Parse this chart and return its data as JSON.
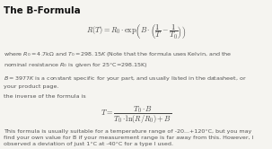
{
  "title": "The B-Formula",
  "bg_color": "#f5f4f0",
  "title_color": "#111111",
  "text_color": "#555555",
  "formula_color": "#444444",
  "title_fontsize": 7.5,
  "body_fontsize": 4.6,
  "formula_fontsize": 6.0
}
